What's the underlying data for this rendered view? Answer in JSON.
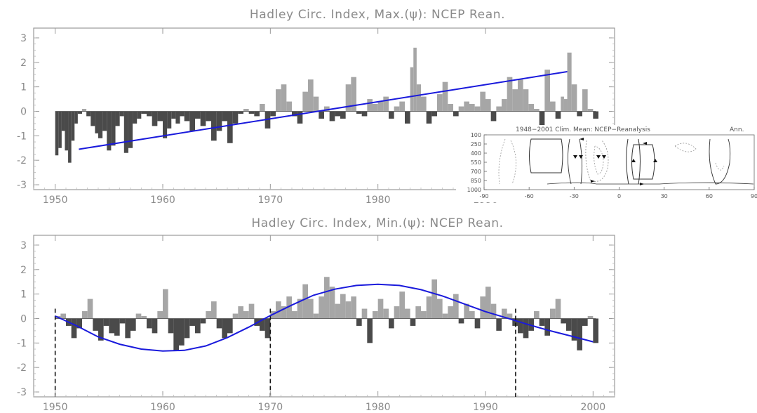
{
  "chart_data": [
    {
      "type": "area",
      "title": "Hadley Circ. Index, Max.(ψ):  NCEP Rean.",
      "xlim": [
        1948,
        2002
      ],
      "ylim": [
        -3.2,
        3.4
      ],
      "yticks": [
        3,
        2,
        1,
        0,
        -1,
        -2,
        -3
      ],
      "xticks": [
        1950,
        1960,
        1970,
        1980,
        1990
      ],
      "colors": {
        "positive": "#a6a6a6",
        "negative": "#4a4a4a",
        "trend": "#1a1adc",
        "axis": "#8a8a8a"
      },
      "series": [
        {
          "values_x": [
            1950.0,
            1950.3,
            1950.6,
            1950.9,
            1951.2,
            1951.5,
            1951.8,
            1952.1,
            1952.5,
            1952.9,
            1953.3,
            1953.7,
            1954.0,
            1954.4,
            1954.8,
            1955.2,
            1955.6,
            1956.0,
            1956.4,
            1956.8,
            1957.2,
            1957.6,
            1958.0,
            1958.5,
            1959.0,
            1959.5,
            1960.0,
            1960.4,
            1960.8,
            1961.2,
            1961.6,
            1962.0,
            1962.5,
            1963.0,
            1963.5,
            1964.0,
            1964.5,
            1965.0,
            1965.5,
            1966.0,
            1966.5,
            1967.0,
            1967.5,
            1968.0,
            1968.5,
            1969.0,
            1969.5,
            1970.0,
            1970.5,
            1971.0,
            1971.5,
            1972.0,
            1972.5,
            1973.0,
            1973.5,
            1974.0,
            1974.5,
            1975.0,
            1975.5,
            1976.0,
            1976.5,
            1977.0,
            1977.5,
            1978.0,
            1978.5,
            1979.0,
            1979.5,
            1980.0,
            1980.5,
            1981.0,
            1981.5,
            1982.0,
            1982.5,
            1983.0,
            1983.3,
            1983.6,
            1984.0,
            1984.5,
            1985.0,
            1985.5,
            1986.0,
            1986.5,
            1987.0,
            1987.5,
            1988.0,
            1988.5,
            1989.0,
            1989.5,
            1990.0,
            1990.5,
            1991.0,
            1991.5,
            1992.0,
            1992.5,
            1993.0,
            1993.5,
            1994.0,
            1994.5,
            1995.0,
            1995.5,
            1996.0,
            1996.5,
            1997.0,
            1997.3,
            1997.6,
            1998.0,
            1998.5,
            1999.0,
            1999.5,
            2000.0
          ],
          "values": [
            -1.8,
            -1.5,
            -0.8,
            -1.6,
            -2.1,
            -1.2,
            -0.5,
            -0.1,
            0.1,
            -0.2,
            -0.6,
            -0.9,
            -1.1,
            -0.8,
            -1.6,
            -1.4,
            -0.6,
            -0.2,
            -1.7,
            -1.5,
            -0.5,
            -0.3,
            -0.1,
            -0.2,
            -0.6,
            -0.4,
            -1.1,
            -0.7,
            -0.3,
            -0.5,
            -0.2,
            -0.4,
            -0.8,
            -0.3,
            -0.6,
            -0.4,
            -1.2,
            -0.8,
            -0.4,
            -1.3,
            -0.5,
            -0.1,
            0.1,
            -0.1,
            -0.2,
            0.3,
            -0.7,
            -0.2,
            0.9,
            1.1,
            0.4,
            -0.2,
            -0.5,
            0.8,
            1.3,
            0.6,
            -0.3,
            0.2,
            -0.4,
            -0.2,
            -0.3,
            1.1,
            1.4,
            -0.1,
            -0.2,
            0.5,
            0.3,
            0.4,
            0.6,
            -0.3,
            0.2,
            0.4,
            -0.5,
            1.8,
            2.6,
            1.1,
            0.6,
            -0.5,
            -0.2,
            0.7,
            1.2,
            0.3,
            -0.2,
            0.2,
            0.4,
            0.3,
            0.2,
            0.8,
            0.5,
            -0.4,
            0.2,
            0.5,
            1.4,
            0.9,
            1.3,
            0.9,
            0.3,
            0.1,
            -0.6,
            1.7,
            0.4,
            -0.3,
            0.6,
            0.5,
            2.4,
            1.1,
            -0.2,
            0.9,
            0.1,
            -0.3
          ]
        },
        {
          "name": "trend",
          "x": [
            1952.2,
            1997.6
          ],
          "values": [
            -1.55,
            1.62
          ]
        }
      ]
    },
    {
      "type": "area",
      "title": "Hadley Circ. Index, Min.(ψ):  NCEP Rean.",
      "xlim": [
        1948,
        2002
      ],
      "ylim": [
        -3.2,
        3.4
      ],
      "yticks": [
        3,
        2,
        1,
        0,
        -1,
        -2,
        -3
      ],
      "xticks": [
        1950,
        1960,
        1970,
        1980,
        1990,
        2000
      ],
      "vlines": [
        1950,
        1970,
        1992.8
      ],
      "colors": {
        "positive": "#a6a6a6",
        "negative": "#4a4a4a",
        "fit": "#1a1adc",
        "vline": "#111111"
      },
      "series": [
        {
          "values_x": [
            1950.0,
            1950.5,
            1951.0,
            1951.5,
            1952.0,
            1952.5,
            1953.0,
            1953.5,
            1954.0,
            1954.5,
            1955.0,
            1955.5,
            1956.0,
            1956.5,
            1957.0,
            1957.5,
            1958.0,
            1958.5,
            1959.0,
            1959.5,
            1960.0,
            1960.5,
            1961.0,
            1961.5,
            1962.0,
            1962.5,
            1963.0,
            1963.5,
            1964.0,
            1964.5,
            1965.0,
            1965.5,
            1966.0,
            1966.5,
            1967.0,
            1967.5,
            1968.0,
            1968.5,
            1969.0,
            1969.5,
            1970.0,
            1970.5,
            1971.0,
            1971.5,
            1972.0,
            1972.5,
            1973.0,
            1973.5,
            1974.0,
            1974.5,
            1975.0,
            1975.5,
            1976.0,
            1976.5,
            1977.0,
            1977.5,
            1978.0,
            1978.5,
            1979.0,
            1979.5,
            1980.0,
            1980.5,
            1981.0,
            1981.5,
            1982.0,
            1982.5,
            1983.0,
            1983.5,
            1984.0,
            1984.5,
            1985.0,
            1985.5,
            1986.0,
            1986.5,
            1987.0,
            1987.5,
            1988.0,
            1988.5,
            1989.0,
            1989.5,
            1990.0,
            1990.5,
            1991.0,
            1991.5,
            1992.0,
            1992.5,
            1993.0,
            1993.5,
            1994.0,
            1994.5,
            1995.0,
            1995.5,
            1996.0,
            1996.5,
            1997.0,
            1997.5,
            1998.0,
            1998.5,
            1999.0,
            1999.5,
            2000.0
          ],
          "values": [
            0.1,
            0.2,
            -0.3,
            -0.8,
            -0.4,
            0.3,
            0.8,
            -0.5,
            -0.9,
            -0.3,
            -0.6,
            -0.7,
            -0.2,
            -0.8,
            -0.5,
            0.2,
            0.1,
            -0.4,
            -0.6,
            0.3,
            1.2,
            -0.6,
            -1.3,
            -1.1,
            -0.8,
            -0.3,
            -0.6,
            -0.2,
            0.3,
            0.7,
            -0.4,
            -0.8,
            -0.6,
            0.2,
            0.5,
            0.3,
            0.6,
            -0.3,
            -0.5,
            -0.8,
            0.3,
            0.7,
            0.5,
            0.9,
            0.3,
            0.8,
            1.4,
            0.8,
            0.2,
            0.9,
            1.7,
            1.3,
            0.6,
            1.0,
            0.7,
            0.9,
            -0.3,
            0.4,
            -1.0,
            0.3,
            0.8,
            0.4,
            -0.4,
            0.5,
            1.1,
            0.4,
            -0.3,
            0.5,
            0.3,
            0.9,
            1.6,
            0.8,
            0.2,
            0.5,
            1.0,
            -0.2,
            0.6,
            0.3,
            -0.4,
            0.9,
            1.3,
            0.6,
            -0.5,
            0.4,
            0.2,
            -0.3,
            -0.6,
            -0.8,
            -0.5,
            0.3,
            -0.3,
            -0.7,
            0.4,
            0.8,
            -0.2,
            -0.5,
            -0.9,
            -1.3,
            -0.3,
            0.1,
            -1.0
          ]
        },
        {
          "name": "fit",
          "x": [
            1950,
            1952,
            1954,
            1956,
            1958,
            1960,
            1962,
            1964,
            1966,
            1968,
            1970,
            1972,
            1974,
            1976,
            1978,
            1980,
            1982,
            1984,
            1986,
            1988,
            1990,
            1992,
            1994,
            1996,
            1998,
            2000
          ],
          "values": [
            0.1,
            -0.3,
            -0.75,
            -1.05,
            -1.25,
            -1.33,
            -1.3,
            -1.12,
            -0.78,
            -0.35,
            0.12,
            0.55,
            0.95,
            1.2,
            1.35,
            1.4,
            1.35,
            1.18,
            0.92,
            0.6,
            0.28,
            0.02,
            -0.25,
            -0.5,
            -0.72,
            -0.95
          ]
        }
      ]
    },
    {
      "type": "heatmap",
      "title": "1948−2001 Clim. Mean:  NCEP−Reanalysis",
      "note": "Ann.",
      "xticks": [
        -90,
        -60,
        -30,
        0,
        30,
        60,
        90
      ],
      "yticks": [
        100,
        250,
        400,
        550,
        700,
        850,
        1000
      ],
      "xlim": [
        -90,
        90
      ],
      "ylim": [
        1000,
        100
      ]
    }
  ]
}
